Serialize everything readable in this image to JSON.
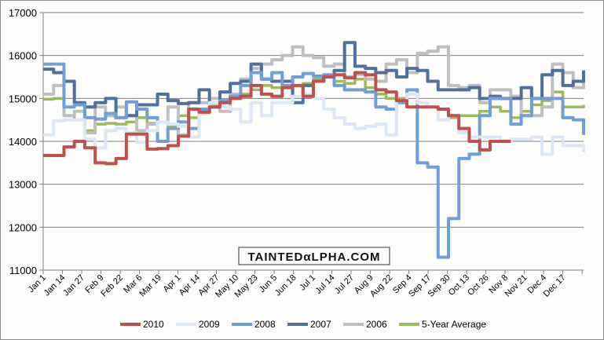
{
  "chart_data": {
    "type": "line",
    "title": "",
    "xlabel": "",
    "ylabel": "",
    "ylim": [
      11000,
      17000
    ],
    "yticks": [
      11000,
      12000,
      13000,
      14000,
      15000,
      16000,
      17000
    ],
    "xtick_labels": [
      "Jan 1",
      "Jan 14",
      "Jan 27",
      "Feb 9",
      "Feb 22",
      "Mar 6",
      "Mar 19",
      "Apr 1",
      "Apr 14",
      "Apr 27",
      "May 10",
      "May 23",
      "Jun 5",
      "Jun 18",
      "Jul 1",
      "Jul 14",
      "Jul 27",
      "Aug 9",
      "Aug 22",
      "Sep 4",
      "Sep 17",
      "Sep 30",
      "Oct 13",
      "Oct 26",
      "Nov 8",
      "Nov 21",
      "Dec 4",
      "Dec 17"
    ],
    "x_unit": "week of year (0-52)",
    "grid": true,
    "legend_position": "bottom",
    "watermark": "TAINTEDαLPHA.COM",
    "series": [
      {
        "name": "2010",
        "color": "#c0504d",
        "values": [
          13670,
          13670,
          13870,
          14000,
          13850,
          13500,
          13480,
          13600,
          14170,
          14170,
          13820,
          13830,
          13900,
          14120,
          14750,
          14680,
          14800,
          14900,
          15000,
          15050,
          15300,
          15100,
          15050,
          15250,
          15300,
          15050,
          15400,
          15500,
          15550,
          15480,
          15600,
          15550,
          15200,
          15150,
          14950,
          14800,
          14800,
          14800,
          14750,
          14600,
          14300,
          14000,
          13800,
          14000,
          14000
        ]
      },
      {
        "name": "2009",
        "color": "#dce6f5",
        "values": [
          14150,
          14480,
          14500,
          14500,
          14050,
          13850,
          14250,
          14300,
          14200,
          13980,
          14250,
          14450,
          14400,
          14350,
          14100,
          14650,
          14900,
          14800,
          14750,
          14450,
          14900,
          14600,
          14900,
          14900,
          15050,
          15100,
          15000,
          14750,
          14550,
          14400,
          14300,
          14350,
          14400,
          14150,
          14950,
          15100,
          14900,
          14800,
          14500,
          14600,
          14200,
          14100,
          14100,
          14100,
          14000,
          14050,
          14050,
          14100,
          13700,
          14100,
          13900,
          13900,
          13750
        ]
      },
      {
        "name": "2008",
        "color": "#6f9fd8",
        "values": [
          15800,
          15800,
          14800,
          14850,
          14550,
          14520,
          14650,
          14550,
          14920,
          14750,
          14550,
          14000,
          14300,
          14450,
          14300,
          14750,
          14800,
          14950,
          15050,
          15300,
          15600,
          15450,
          15600,
          15300,
          15500,
          15580,
          15520,
          15550,
          15300,
          15200,
          15200,
          15150,
          14800,
          14750,
          14900,
          15200,
          13500,
          13400,
          11300,
          12200,
          13600,
          13700,
          14600,
          15000,
          15000,
          14400,
          14600,
          15000,
          15000,
          15000,
          14550,
          14500,
          14150
        ]
      },
      {
        "name": "2007",
        "color": "#4f6f9f",
        "values": [
          15680,
          15600,
          15400,
          14900,
          14800,
          14900,
          15000,
          14550,
          14600,
          14850,
          14850,
          15100,
          14950,
          14880,
          14900,
          15200,
          14800,
          15150,
          15350,
          15400,
          15800,
          15450,
          15400,
          15400,
          14900,
          15300,
          15400,
          15500,
          15650,
          16300,
          15750,
          15700,
          15600,
          15650,
          15500,
          15700,
          15650,
          15400,
          15200,
          15200,
          15200,
          15250,
          15000,
          15050,
          15000,
          15000,
          15250,
          15000,
          15550,
          15650,
          15300,
          15400,
          15650
        ]
      },
      {
        "name": "2006",
        "color": "#bfbfbf",
        "values": [
          15100,
          15300,
          14600,
          14700,
          14200,
          14800,
          14600,
          14800,
          14600,
          14250,
          14400,
          14450,
          14800,
          14150,
          14900,
          14900,
          15000,
          14700,
          15100,
          15450,
          15700,
          15800,
          15900,
          16000,
          16200,
          16000,
          15950,
          15750,
          15800,
          15500,
          15550,
          15450,
          15400,
          15800,
          15900,
          15600,
          16050,
          16100,
          16200,
          15300,
          15250,
          15300,
          14900,
          15200,
          15200,
          15050,
          14600,
          14600,
          14800,
          15800,
          15600,
          15250,
          15650
        ]
      },
      {
        "name": "5-Year Average",
        "color": "#9bbb59",
        "values": [
          14980,
          15000,
          14600,
          14500,
          14250,
          14400,
          14420,
          14400,
          14450,
          14550,
          14420,
          14450,
          14350,
          14600,
          14550,
          14700,
          14880,
          14900,
          15050,
          15100,
          15200,
          15300,
          15250,
          15400,
          15300,
          15350,
          15450,
          15500,
          15400,
          15350,
          15450,
          15250,
          15100,
          15000,
          15000,
          15200,
          14900,
          14800,
          14500,
          14550,
          14600,
          14600,
          14700,
          14800,
          14700,
          14550,
          14700,
          14850,
          14950,
          15150,
          14800,
          14800,
          14850
        ]
      }
    ]
  }
}
